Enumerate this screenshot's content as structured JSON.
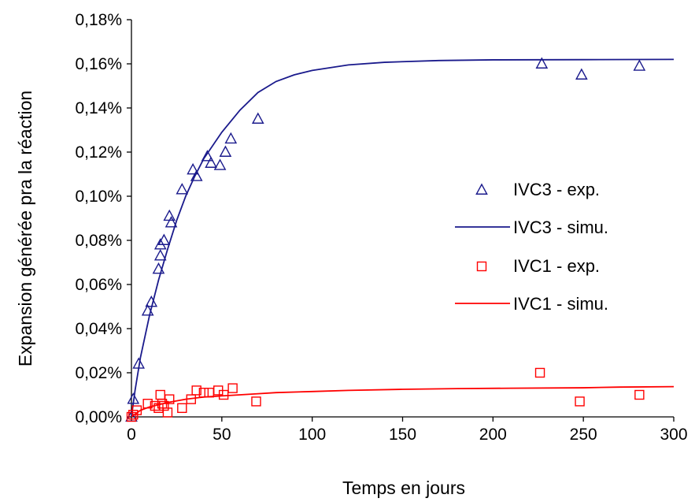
{
  "chart_data": {
    "type": "scatter",
    "title": "",
    "xlabel": "Temps en jours",
    "ylabel": "Expansion générée pra la réaction",
    "xlim": [
      0,
      300
    ],
    "ylim": [
      0,
      0.18
    ],
    "xticks": [
      0,
      50,
      100,
      150,
      200,
      250,
      300
    ],
    "xtick_labels": [
      "0",
      "50",
      "100",
      "150",
      "200",
      "250",
      "300"
    ],
    "yticks": [
      0,
      0.02,
      0.04,
      0.06,
      0.08,
      0.1,
      0.12,
      0.14,
      0.16,
      0.18
    ],
    "ytick_labels": [
      "0,00%",
      "0,02%",
      "0,04%",
      "0,06%",
      "0,08%",
      "0,10%",
      "0,12%",
      "0,14%",
      "0,16%",
      "0,18%"
    ],
    "grid": false,
    "legend_position": "right",
    "series": [
      {
        "name": "IVC3 - exp.",
        "kind": "points",
        "marker": "triangle",
        "color": "#1a1a8c",
        "x": [
          0,
          1,
          4,
          9,
          11,
          15,
          16,
          16,
          18,
          21,
          22,
          28,
          34,
          36,
          42,
          44,
          49,
          52,
          55,
          70,
          227,
          249,
          281
        ],
        "y": [
          0.0,
          0.008,
          0.024,
          0.048,
          0.052,
          0.067,
          0.073,
          0.078,
          0.08,
          0.091,
          0.088,
          0.103,
          0.112,
          0.109,
          0.118,
          0.115,
          0.114,
          0.12,
          0.126,
          0.135,
          0.16,
          0.155,
          0.159
        ]
      },
      {
        "name": "IVC3 - simu.",
        "kind": "line",
        "color": "#1a1a8c",
        "x": [
          0,
          2,
          5,
          10,
          15,
          20,
          25,
          30,
          35,
          40,
          50,
          60,
          70,
          80,
          90,
          100,
          120,
          140,
          170,
          200,
          250,
          300
        ],
        "y": [
          0.0,
          0.012,
          0.027,
          0.046,
          0.062,
          0.076,
          0.089,
          0.1,
          0.109,
          0.117,
          0.129,
          0.139,
          0.147,
          0.152,
          0.155,
          0.157,
          0.1595,
          0.1607,
          0.1615,
          0.1618,
          0.1619,
          0.162
        ]
      },
      {
        "name": "IVC1 - exp.",
        "kind": "points",
        "marker": "square",
        "color": "#ff0000",
        "x": [
          0,
          1,
          3,
          9,
          13,
          15,
          16,
          17,
          18,
          20,
          21,
          28,
          33,
          36,
          40,
          43,
          48,
          51,
          56,
          69,
          226,
          248,
          281
        ],
        "y": [
          0.0,
          0.001,
          0.003,
          0.006,
          0.005,
          0.004,
          0.01,
          0.006,
          0.005,
          0.002,
          0.008,
          0.004,
          0.008,
          0.012,
          0.011,
          0.011,
          0.012,
          0.01,
          0.013,
          0.007,
          0.02,
          0.007,
          0.01
        ]
      },
      {
        "name": "IVC1 - simu.",
        "kind": "line",
        "color": "#ff0000",
        "x": [
          0,
          5,
          10,
          20,
          30,
          40,
          50,
          60,
          70,
          80,
          100,
          120,
          150,
          180,
          210,
          250,
          270,
          300
        ],
        "y": [
          0.0,
          0.003,
          0.0045,
          0.0065,
          0.008,
          0.009,
          0.0095,
          0.01,
          0.0105,
          0.011,
          0.0115,
          0.012,
          0.0125,
          0.0128,
          0.013,
          0.0132,
          0.0135,
          0.0137
        ]
      }
    ]
  }
}
